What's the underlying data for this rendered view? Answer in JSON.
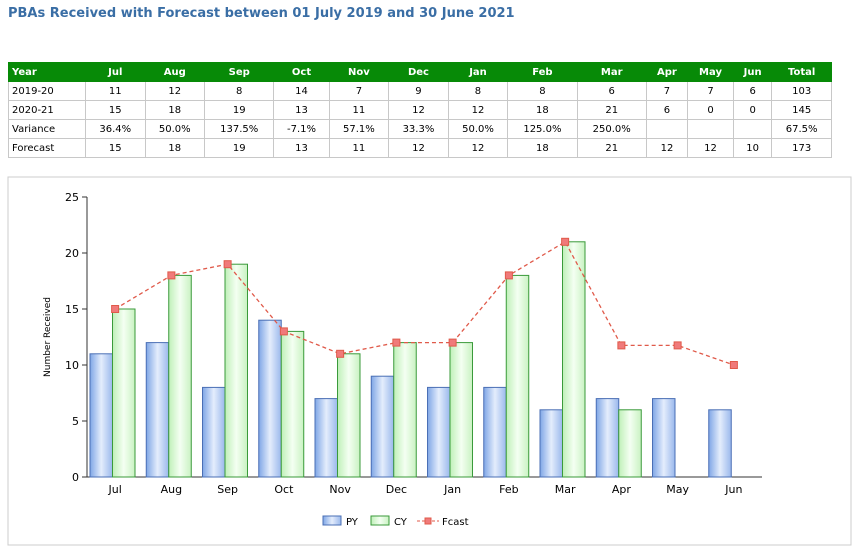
{
  "title": "PBAs Received with Forecast between 01 July 2019 and 30 June 2021",
  "table": {
    "header": [
      "Year",
      "Jul",
      "Aug",
      "Sep",
      "Oct",
      "Nov",
      "Dec",
      "Jan",
      "Feb",
      "Mar",
      "Apr",
      "May",
      "Jun",
      "Total"
    ],
    "rows": [
      [
        "2019-20",
        "11",
        "12",
        "8",
        "14",
        "7",
        "9",
        "8",
        "8",
        "6",
        "7",
        "7",
        "6",
        "103"
      ],
      [
        "2020-21",
        "15",
        "18",
        "19",
        "13",
        "11",
        "12",
        "12",
        "18",
        "21",
        "6",
        "0",
        "0",
        "145"
      ],
      [
        "Variance",
        "36.4%",
        "50.0%",
        "137.5%",
        "-7.1%",
        "57.1%",
        "33.3%",
        "50.0%",
        "125.0%",
        "250.0%",
        null,
        null,
        null,
        "67.5%"
      ],
      [
        "Forecast",
        "15",
        "18",
        "19",
        "13",
        "11",
        "12",
        "12",
        "18",
        "21",
        "12",
        "12",
        "10",
        "173"
      ]
    ]
  },
  "chart_data": {
    "type": "bar",
    "y_label": "Number Received",
    "categories": [
      "Jul",
      "Aug",
      "Sep",
      "Oct",
      "Nov",
      "Dec",
      "Jan",
      "Feb",
      "Mar",
      "Apr",
      "May",
      "Jun"
    ],
    "series": [
      {
        "name": "PY",
        "type": "bar",
        "color": "#4a6fb5",
        "values": [
          11,
          12,
          8,
          14,
          7,
          9,
          8,
          8,
          6,
          7,
          7,
          6
        ]
      },
      {
        "name": "CY",
        "type": "bar",
        "color": "#3a9a3a",
        "values": [
          15,
          18,
          19,
          13,
          11,
          12,
          12,
          18,
          21,
          6,
          null,
          null
        ]
      },
      {
        "name": "Fcast",
        "type": "line",
        "color": "#e05a4a",
        "values": [
          15,
          18,
          19,
          13,
          11,
          12,
          12,
          18,
          21,
          11.75,
          11.75,
          10
        ]
      }
    ],
    "ylim": [
      0,
      25
    ],
    "yticks": [
      0,
      5,
      10,
      15,
      20,
      25
    ],
    "legend": "bottom"
  }
}
